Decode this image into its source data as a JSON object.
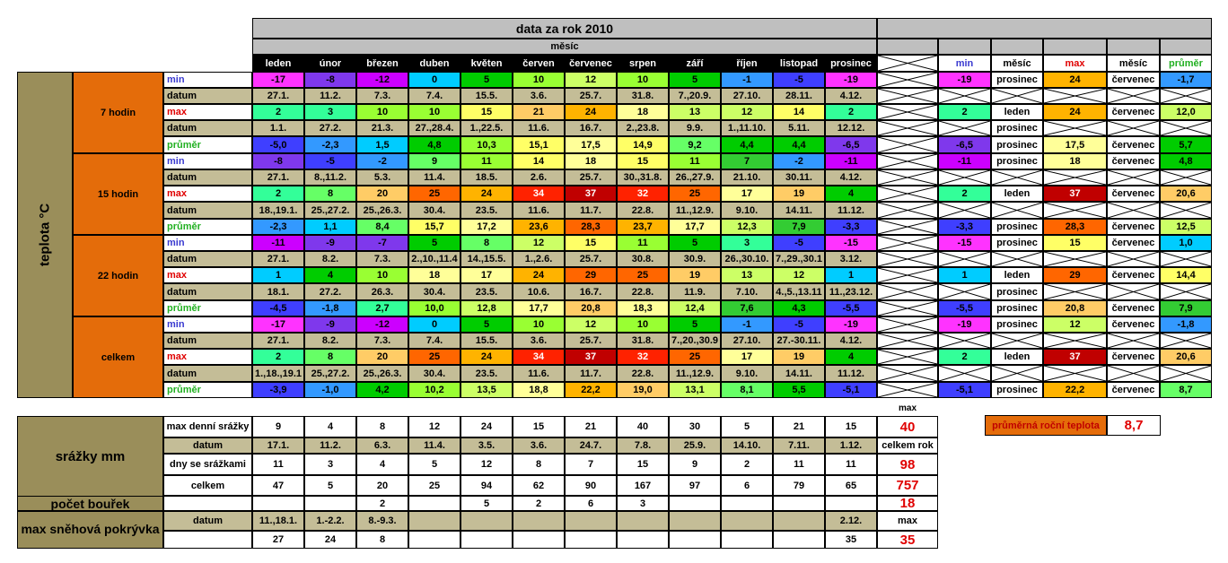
{
  "title": "data za rok 2010",
  "mesic_label": "měsíc",
  "months": [
    "leden",
    "únor",
    "březen",
    "duben",
    "květen",
    "červen",
    "červenec",
    "srpen",
    "září",
    "říjen",
    "listopad",
    "prosinec"
  ],
  "summary_headers": [
    "min",
    "měsíc",
    "max",
    "měsíc",
    "průměr"
  ],
  "row_labels": [
    "min",
    "datum",
    "max",
    "datum",
    "průměr"
  ],
  "teplota_label": "teplota °C",
  "groups": [
    {
      "name": "7 hodin",
      "min": [
        "-17",
        "-8",
        "-12",
        "0",
        "5",
        "10",
        "12",
        "10",
        "5",
        "-1",
        "-5",
        "-19"
      ],
      "min_dates": [
        "27.1.",
        "11.2.",
        "7.3.",
        "7.4.",
        "15.5.",
        "3.6.",
        "25.7.",
        "31.8.",
        "7.,20.9.",
        "27.10.",
        "28.11.",
        "4.12."
      ],
      "max": [
        "2",
        "3",
        "10",
        "10",
        "15",
        "21",
        "24",
        "18",
        "13",
        "12",
        "14",
        "2"
      ],
      "max_dates": [
        "1.1.",
        "27.2.",
        "21.3.",
        "27.,28.4.",
        "1.,22.5.",
        "11.6.",
        "16.7.",
        "2.,23.8.",
        "9.9.",
        "1.,11.10.",
        "5.11.",
        "12.12."
      ],
      "avg": [
        "-5,0",
        "-2,3",
        "1,5",
        "4,8",
        "10,3",
        "15,1",
        "17,5",
        "14,9",
        "9,2",
        "4,4",
        "4,4",
        "-6,5"
      ],
      "summary": {
        "min": "-19",
        "min_month": "prosinec",
        "max": "24",
        "max_month": "červenec",
        "avg_min": "-6,5",
        "avg_min_month": "prosinec",
        "avg_max": "17,5",
        "avg_max_month": "červenec",
        "max_min": "2",
        "max_min_month": "leden",
        "max_min_month2": "prosinec",
        "max_avg": "12,0",
        "avg": "5,7"
      }
    },
    {
      "name": "15 hodin",
      "min": [
        "-8",
        "-5",
        "-2",
        "9",
        "11",
        "14",
        "18",
        "15",
        "11",
        "7",
        "-2",
        "-11"
      ],
      "min_dates": [
        "27.1.",
        "8.,11.2.",
        "5.3.",
        "11.4.",
        "18.5.",
        "2.6.",
        "25.7.",
        "30.,31.8.",
        "26.,27.9.",
        "21.10.",
        "30.11.",
        "4.12."
      ],
      "max": [
        "2",
        "8",
        "20",
        "25",
        "24",
        "34",
        "37",
        "32",
        "25",
        "17",
        "19",
        "4"
      ],
      "max_dates": [
        "18.,19.1.",
        "25.,27.2.",
        "25.,26.3.",
        "30.4.",
        "23.5.",
        "11.6.",
        "11.7.",
        "22.8.",
        "11.,12.9.",
        "9.10.",
        "14.11.",
        "11.12."
      ],
      "avg": [
        "-2,3",
        "1,1",
        "8,4",
        "15,7",
        "17,2",
        "23,6",
        "28,3",
        "23,7",
        "17,7",
        "12,3",
        "7,9",
        "-3,3"
      ],
      "summary": {
        "min": "-11",
        "min_month": "prosinec",
        "max": "18",
        "max_month": "červenec",
        "avg_min": "-3,3",
        "avg_min_month": "prosinec",
        "avg_max": "28,3",
        "avg_max_month": "červenec",
        "max_min": "2",
        "max_min_month": "leden",
        "max_max": "37",
        "max_max_month": "červenec",
        "max_avg": "20,6",
        "min_avg": "4,8",
        "avg": "12,5"
      }
    },
    {
      "name": "22 hodin",
      "min": [
        "-11",
        "-9",
        "-7",
        "5",
        "8",
        "12",
        "15",
        "11",
        "5",
        "3",
        "-5",
        "-15"
      ],
      "min_dates": [
        "27.1.",
        "8.2.",
        "7.3.",
        "2.,10.,11.4",
        "14.,15.5.",
        "1.,2.6.",
        "25.7.",
        "30.8.",
        "30.9.",
        "26.,30.10.",
        "7.,29.,30.1",
        "3.12."
      ],
      "max": [
        "1",
        "4",
        "10",
        "18",
        "17",
        "24",
        "29",
        "25",
        "19",
        "13",
        "12",
        "1"
      ],
      "max_dates": [
        "18.1.",
        "27.2.",
        "26.3.",
        "30.4.",
        "23.5.",
        "10.6.",
        "16.7.",
        "22.8.",
        "11.9.",
        "7.10.",
        "4.,5.,13.11",
        "11.,23.12."
      ],
      "avg": [
        "-4,5",
        "-1,8",
        "2,7",
        "10,0",
        "12,8",
        "17,7",
        "20,8",
        "18,3",
        "12,4",
        "7,6",
        "4,3",
        "-5,5"
      ],
      "summary": {
        "min": "-15",
        "min_month": "prosinec",
        "max": "15",
        "max_month": "červenec",
        "avg_min": "-5,5",
        "avg_min_month": "prosinec",
        "avg_max": "20,8",
        "avg_max_month": "červenec",
        "max_min": "1",
        "max_min_month": "leden",
        "max_max": "29",
        "max_max_month": "červenec",
        "max_min_month2": "prosinec",
        "max_avg": "14,4",
        "min_avg": "1,0",
        "avg": "7,9"
      }
    },
    {
      "name": "celkem",
      "min": [
        "-17",
        "-9",
        "-12",
        "0",
        "5",
        "10",
        "12",
        "10",
        "5",
        "-1",
        "-5",
        "-19"
      ],
      "min_dates": [
        "27.1.",
        "8.2.",
        "7.3.",
        "7.4.",
        "15.5.",
        "3.6.",
        "25.7.",
        "31.8.",
        "7.,20.,30.9",
        "27.10.",
        "27.-30.11.",
        "4.12."
      ],
      "max": [
        "2",
        "8",
        "20",
        "25",
        "24",
        "34",
        "37",
        "32",
        "25",
        "17",
        "19",
        "4"
      ],
      "max_dates": [
        "1.,18.,19.1",
        "25.,27.2.",
        "25.,26.3.",
        "30.4.",
        "23.5.",
        "11.6.",
        "11.7.",
        "22.8.",
        "11.,12.9.",
        "9.10.",
        "14.11.",
        "11.12."
      ],
      "avg": [
        "-3,9",
        "-1,0",
        "4,2",
        "10,2",
        "13,5",
        "18,8",
        "22,2",
        "19,0",
        "13,1",
        "8,1",
        "5,5",
        "-5,1"
      ],
      "summary": {
        "min": "-19",
        "min_month": "prosinec",
        "max": "12",
        "max_month": "červenec",
        "avg_min": "-5,1",
        "avg_min_month": "prosinec",
        "avg_max": "22,2",
        "avg_max_month": "červenec",
        "max_min": "2",
        "max_min_month": "leden",
        "max_max": "37",
        "max_max_month": "červenec",
        "max_avg": "20,6",
        "min_avg": "-1,8",
        "avg": "8,7"
      }
    }
  ],
  "precip": {
    "title": "srážky mm",
    "rows": [
      {
        "label": "max denní srážky",
        "values": [
          "9",
          "4",
          "8",
          "12",
          "24",
          "15",
          "21",
          "40",
          "30",
          "5",
          "21",
          "15"
        ],
        "total": "40",
        "total_label": "max"
      },
      {
        "label": "datum",
        "values": [
          "17.1.",
          "11.2.",
          "6.3.",
          "11.4.",
          "3.5.",
          "3.6.",
          "24.7.",
          "7.8.",
          "25.9.",
          "14.10.",
          "7.11.",
          "1.12."
        ],
        "total": "",
        "total_label": "celkem rok"
      },
      {
        "label": "dny se srážkami",
        "values": [
          "11",
          "3",
          "4",
          "5",
          "12",
          "8",
          "7",
          "15",
          "9",
          "2",
          "11",
          "11"
        ],
        "total": "98"
      },
      {
        "label": "celkem",
        "values": [
          "47",
          "5",
          "20",
          "25",
          "94",
          "62",
          "90",
          "167",
          "97",
          "6",
          "79",
          "65"
        ],
        "total": "757"
      }
    ]
  },
  "storms": {
    "title": "počet bouřek",
    "values": [
      "",
      "",
      "2",
      "",
      "5",
      "2",
      "6",
      "3",
      "",
      "",
      "",
      ""
    ],
    "total": "18"
  },
  "snow": {
    "title": "max sněhová pokrývka",
    "date_label": "datum",
    "dates": [
      "11.,18.1.",
      "1.-2.2.",
      "8.-9.3.",
      "",
      "",
      "",
      "",
      "",
      "",
      "",
      "",
      "2.12."
    ],
    "values": [
      "27",
      "24",
      "8",
      "",
      "",
      "",
      "",
      "",
      "",
      "",
      "",
      "35"
    ],
    "total_label": "max",
    "total": "35"
  },
  "annual_avg": {
    "label": "průměrná roční teplota",
    "value": "8,7"
  },
  "colors": {
    "header_bg": "#000000",
    "gray": "#bfbfbf",
    "tan": "#c4bd97",
    "orange": "#e46c0a",
    "olive": "#948a54",
    "darkolive": "#9a8e5a",
    "red": "#e00000"
  }
}
